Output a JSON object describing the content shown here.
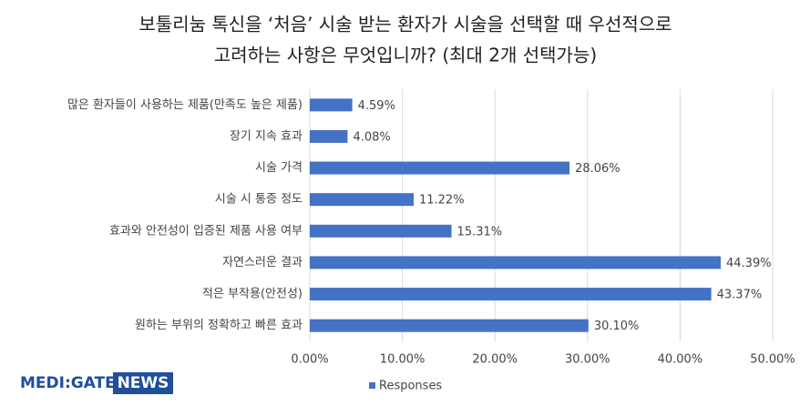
{
  "chart_data": {
    "type": "bar",
    "orientation": "horizontal",
    "title": [
      "보툴리눔 톡신을 ‘처음’ 시술 받는 환자가 시술을 선택할 때 우선적으로",
      "고려하는 사항은 무엇입니까? (최대 2개 선택가능)"
    ],
    "categories": [
      "많은 환자들이 사용하는 제품(만족도 높은 제품)",
      "장기 지속 효과",
      "시술 가격",
      "시술 시 통증 정도",
      "효과와 안전성이 입증된 제품 사용 여부",
      "자연스러운 결과",
      "적은 부작용(안전성)",
      "원하는 부위의 정확하고 빠른 효과"
    ],
    "series": [
      {
        "name": "Responses",
        "color": "#4472c4",
        "values": [
          4.59,
          4.08,
          28.06,
          11.22,
          15.31,
          44.39,
          43.37,
          30.1
        ],
        "value_labels": [
          "4.59%",
          "4.08%",
          "28.06%",
          "11.22%",
          "15.31%",
          "44.39%",
          "43.37%",
          "30.10%"
        ]
      }
    ],
    "xlim": [
      0,
      50
    ],
    "xticks": [
      {
        "value": 0,
        "label": "0.00%"
      },
      {
        "value": 10,
        "label": "10.00%"
      },
      {
        "value": 20,
        "label": "20.00%"
      },
      {
        "value": 30,
        "label": "30.00%"
      },
      {
        "value": 40,
        "label": "40.00%"
      },
      {
        "value": 50,
        "label": "50.00%"
      }
    ],
    "grid": true,
    "legend": "bottom"
  },
  "logo": {
    "left": "MEDI:GATE",
    "right": "NEWS"
  }
}
